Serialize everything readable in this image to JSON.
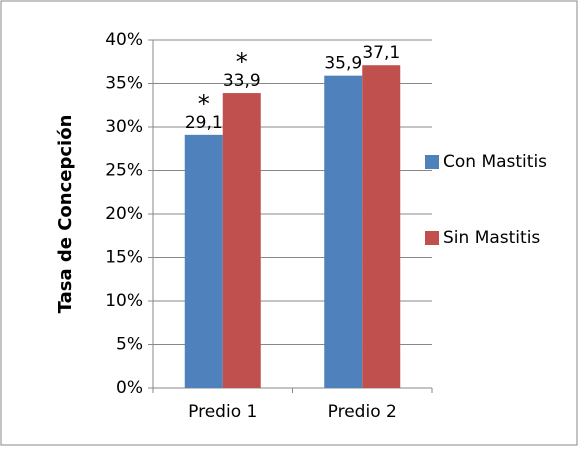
{
  "chart_data": {
    "type": "bar",
    "y_label": "Tasa de Concepción",
    "categories": [
      "Predio 1",
      "Predio 2"
    ],
    "series": [
      {
        "name": "Con Mastitis",
        "color": "#4f81bd",
        "values": [
          29.1,
          35.9
        ],
        "value_labels": [
          "29,1",
          "35,9"
        ],
        "notes": [
          "*",
          null
        ]
      },
      {
        "name": "Sin Mastitis",
        "color": "#c0504d",
        "values": [
          33.9,
          37.1
        ],
        "value_labels": [
          "33,9",
          "37,1"
        ],
        "notes": [
          "*",
          null
        ]
      }
    ],
    "ylim": [
      0,
      40
    ],
    "yticks": [
      {
        "value": 0,
        "label": "0%"
      },
      {
        "value": 5,
        "label": "5%"
      },
      {
        "value": 10,
        "label": "10%"
      },
      {
        "value": 15,
        "label": "15%"
      },
      {
        "value": 20,
        "label": "20%"
      },
      {
        "value": 25,
        "label": "25%"
      },
      {
        "value": 30,
        "label": "30%"
      },
      {
        "value": 35,
        "label": "35%"
      },
      {
        "value": 40,
        "label": "40%"
      }
    ],
    "grid": true,
    "legend": "right"
  }
}
